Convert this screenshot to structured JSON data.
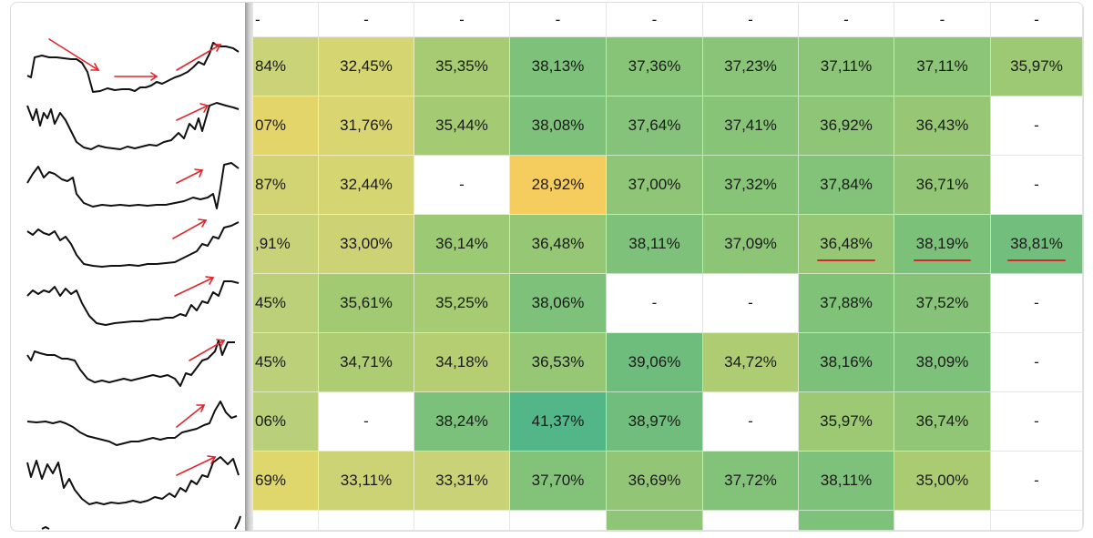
{
  "columns": 9,
  "header_row": [
    "-",
    "-",
    "-",
    "-",
    "-",
    "-",
    "-",
    "-",
    "-"
  ],
  "rows": [
    {
      "cells": [
        {
          "t": "84%",
          "c": "#cad378"
        },
        {
          "t": "32,45%",
          "c": "#d5d572"
        },
        {
          "t": "35,35%",
          "c": "#a6cb72"
        },
        {
          "t": "38,13%",
          "c": "#7dc17a"
        },
        {
          "t": "37,36%",
          "c": "#88c478"
        },
        {
          "t": "37,23%",
          "c": "#8ac478"
        },
        {
          "t": "37,11%",
          "c": "#8dc578"
        },
        {
          "t": "37,11%",
          "c": "#8dc578"
        },
        {
          "t": "35,97%",
          "c": "#9dc974"
        }
      ]
    },
    {
      "cells": [
        {
          "t": "07%",
          "c": "#e3d56a"
        },
        {
          "t": "31,76%",
          "c": "#d9d570"
        },
        {
          "t": "35,44%",
          "c": "#a4ca73"
        },
        {
          "t": "38,08%",
          "c": "#7ec17a"
        },
        {
          "t": "37,64%",
          "c": "#84c379"
        },
        {
          "t": "37,41%",
          "c": "#87c478"
        },
        {
          "t": "36,92%",
          "c": "#8fc577"
        },
        {
          "t": "36,43%",
          "c": "#97c775"
        },
        {
          "t": "-",
          "c": ""
        }
      ]
    },
    {
      "cells": [
        {
          "t": "87%",
          "c": "#d2d474"
        },
        {
          "t": "32,44%",
          "c": "#d5d572"
        },
        {
          "t": "-",
          "c": ""
        },
        {
          "t": "28,92%",
          "c": "#f5cd5e"
        },
        {
          "t": "37,00%",
          "c": "#8ec577"
        },
        {
          "t": "37,32%",
          "c": "#88c478"
        },
        {
          "t": "37,84%",
          "c": "#82c279"
        },
        {
          "t": "36,71%",
          "c": "#92c676"
        },
        {
          "t": "-",
          "c": ""
        }
      ]
    },
    {
      "cells": [
        {
          "t": ",91%",
          "c": "#c7d279"
        },
        {
          "t": "33,00%",
          "c": "#cdd375"
        },
        {
          "t": "36,14%",
          "c": "#9bc974"
        },
        {
          "t": "36,48%",
          "c": "#96c775"
        },
        {
          "t": "38,11%",
          "c": "#7dc17a"
        },
        {
          "t": "37,09%",
          "c": "#8dc577"
        },
        {
          "t": "36,48%",
          "c": "#96c775",
          "u": true
        },
        {
          "t": "38,19%",
          "c": "#7cc17a",
          "u": true
        },
        {
          "t": "38,81%",
          "c": "#72be7c",
          "u": true
        }
      ]
    },
    {
      "cells": [
        {
          "t": "45%",
          "c": "#bcd07a"
        },
        {
          "t": "35,61%",
          "c": "#a2ca73"
        },
        {
          "t": "35,25%",
          "c": "#a7cb72"
        },
        {
          "t": "38,06%",
          "c": "#7ec17a"
        },
        {
          "t": "-",
          "c": ""
        },
        {
          "t": "-",
          "c": ""
        },
        {
          "t": "37,88%",
          "c": "#81c279"
        },
        {
          "t": "37,52%",
          "c": "#86c378"
        },
        {
          "t": "-",
          "c": ""
        }
      ]
    },
    {
      "cells": [
        {
          "t": "45%",
          "c": "#bcd07a"
        },
        {
          "t": "34,71%",
          "c": "#aecc72"
        },
        {
          "t": "34,18%",
          "c": "#b5ce72"
        },
        {
          "t": "36,53%",
          "c": "#96c775"
        },
        {
          "t": "39,06%",
          "c": "#6fbd7d"
        },
        {
          "t": "34,72%",
          "c": "#aecc72"
        },
        {
          "t": "38,16%",
          "c": "#7cc17a"
        },
        {
          "t": "38,09%",
          "c": "#7ec17a"
        },
        {
          "t": "-",
          "c": ""
        }
      ]
    },
    {
      "cells": [
        {
          "t": "06%",
          "c": "#b9cf7a"
        },
        {
          "t": "-",
          "c": ""
        },
        {
          "t": "38,24%",
          "c": "#7bc07b"
        },
        {
          "t": "41,37%",
          "c": "#52b688"
        },
        {
          "t": "38,97%",
          "c": "#70bd7d"
        },
        {
          "t": "-",
          "c": ""
        },
        {
          "t": "35,97%",
          "c": "#9dc974"
        },
        {
          "t": "36,74%",
          "c": "#91c676"
        },
        {
          "t": "-",
          "c": ""
        }
      ]
    },
    {
      "cells": [
        {
          "t": "69%",
          "c": "#dfd66c"
        },
        {
          "t": "33,11%",
          "c": "#ccd375"
        },
        {
          "t": "33,31%",
          "c": "#c9d276"
        },
        {
          "t": "37,70%",
          "c": "#83c379"
        },
        {
          "t": "36,69%",
          "c": "#92c676"
        },
        {
          "t": "37,72%",
          "c": "#83c279"
        },
        {
          "t": "38,11%",
          "c": "#7dc17a"
        },
        {
          "t": "35,00%",
          "c": "#aacb72"
        },
        {
          "t": "-",
          "c": ""
        }
      ]
    }
  ],
  "bottom_row_colors": [
    "",
    "",
    "",
    "",
    "#8ec577",
    "",
    "#7dc17a",
    "",
    ""
  ]
}
